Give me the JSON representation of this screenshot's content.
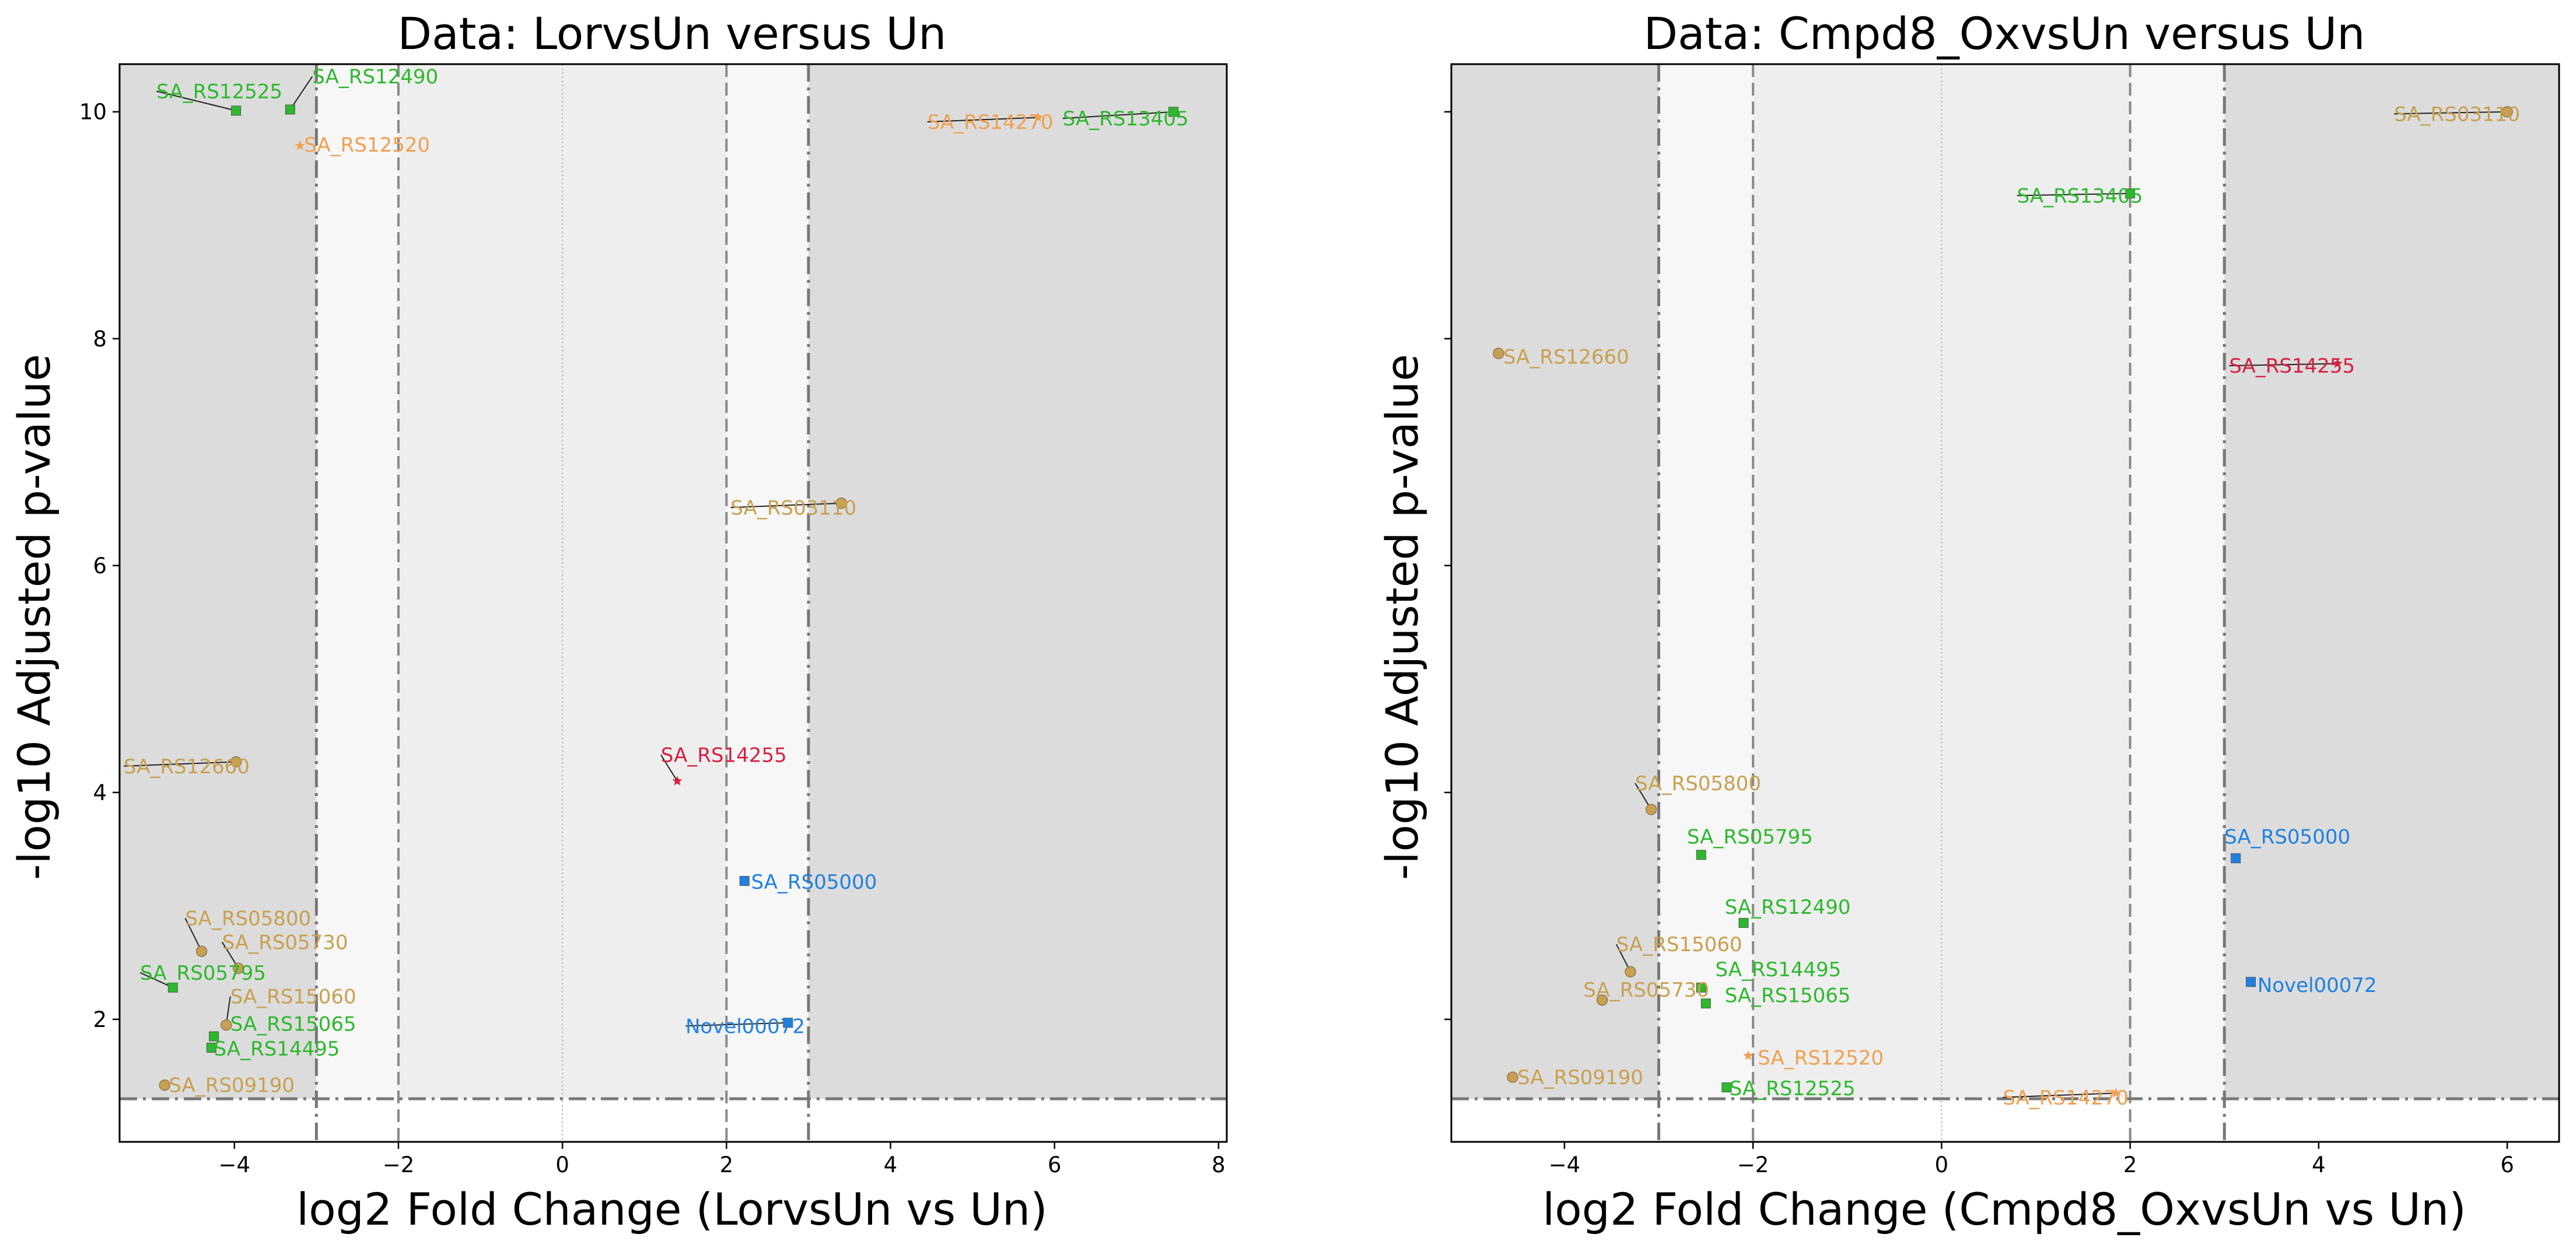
{
  "chart_data": [
    {
      "type": "scatter",
      "title": "Data: LorvsUn versus Un",
      "xlabel": "log2 Fold Change (LorvsUn vs Un)",
      "ylabel": "-log10 Adjusted p-value",
      "xlim": [
        -5.4,
        8.1
      ],
      "ylim": [
        0.92,
        10.42
      ],
      "xticks": [
        -4,
        -2,
        0,
        2,
        4,
        6,
        8
      ],
      "yticks": [
        2,
        4,
        6,
        8,
        10
      ],
      "xtick_labels": [
        "−4",
        "−2",
        "0",
        "2",
        "4",
        "6",
        "8"
      ],
      "ytick_labels": [
        "2",
        "4",
        "6",
        "8",
        "10"
      ],
      "thresholds": {
        "fc_inner": 2,
        "fc_outer": 3,
        "pvalue_line": 1.3
      },
      "points": [
        {
          "gene": "SA_RS12525",
          "x": -3.98,
          "y": 10.01,
          "color": "#2db82d",
          "marker": "square",
          "lx": -4.95,
          "ly": 10.12
        },
        {
          "gene": "SA_RS12490",
          "x": -3.32,
          "y": 10.02,
          "color": "#2db82d",
          "marker": "square",
          "lx": -3.05,
          "ly": 10.25
        },
        {
          "gene": "SA_RS12520",
          "x": -3.2,
          "y": 9.7,
          "color": "#f0a050",
          "marker": "star",
          "lx": -3.15,
          "ly": 9.65
        },
        {
          "gene": "SA_RS14270",
          "x": 5.8,
          "y": 9.95,
          "color": "#f0a050",
          "marker": "star",
          "lx": 4.45,
          "ly": 9.85
        },
        {
          "gene": "SA_RS13405",
          "x": 7.45,
          "y": 10.0,
          "color": "#2db82d",
          "marker": "square",
          "lx": 6.1,
          "ly": 9.88
        },
        {
          "gene": "SA_RS03110",
          "x": 3.4,
          "y": 6.55,
          "color": "#c8a050",
          "marker": "circle",
          "lx": 2.05,
          "ly": 6.45
        },
        {
          "gene": "SA_RS12660",
          "x": -3.98,
          "y": 4.27,
          "color": "#c8a050",
          "marker": "circle",
          "lx": -5.35,
          "ly": 4.17
        },
        {
          "gene": "SA_RS14255",
          "x": 1.4,
          "y": 4.1,
          "color": "#d62040",
          "marker": "star",
          "lx": 1.2,
          "ly": 4.27
        },
        {
          "gene": "SA_RS05000",
          "x": 2.22,
          "y": 3.22,
          "color": "#2080e0",
          "marker": "square",
          "lx": 2.3,
          "ly": 3.15
        },
        {
          "gene": "SA_RS05800",
          "x": -4.4,
          "y": 2.6,
          "color": "#c8a050",
          "marker": "circle",
          "lx": -4.6,
          "ly": 2.83
        },
        {
          "gene": "SA_RS05730",
          "x": -3.95,
          "y": 2.45,
          "color": "#c8a050",
          "marker": "circle",
          "lx": -4.15,
          "ly": 2.62
        },
        {
          "gene": "SA_RS05795",
          "x": -4.75,
          "y": 2.28,
          "color": "#2db82d",
          "marker": "square",
          "lx": -5.15,
          "ly": 2.35
        },
        {
          "gene": "SA_RS15060",
          "x": -4.1,
          "y": 1.95,
          "color": "#c8a050",
          "marker": "circle",
          "lx": -4.05,
          "ly": 2.14
        },
        {
          "gene": "SA_RS15065",
          "x": -4.25,
          "y": 1.85,
          "color": "#2db82d",
          "marker": "square",
          "lx": -4.05,
          "ly": 1.9
        },
        {
          "gene": "Novel00072",
          "x": 2.75,
          "y": 1.97,
          "color": "#2080e0",
          "marker": "square",
          "lx": 1.5,
          "ly": 1.88
        },
        {
          "gene": "SA_RS14495",
          "x": -4.28,
          "y": 1.75,
          "color": "#2db82d",
          "marker": "square",
          "lx": -4.25,
          "ly": 1.68
        },
        {
          "gene": "SA_RS09190",
          "x": -4.85,
          "y": 1.42,
          "color": "#c8a050",
          "marker": "circle",
          "lx": -4.8,
          "ly": 1.36
        }
      ]
    },
    {
      "type": "scatter",
      "title": "Data: Cmpd8_OxvsUn versus Un",
      "xlabel": "log2 Fold Change (Cmpd8_OxvsUn vs Un)",
      "ylabel": "-log10 Adjusted p-value",
      "xlim": [
        -5.2,
        6.55
      ],
      "ylim": [
        0.92,
        10.42
      ],
      "xticks": [
        -4,
        -2,
        0,
        2,
        4,
        6
      ],
      "yticks": [
        2,
        4,
        6,
        8,
        10
      ],
      "xtick_labels": [
        "−4",
        "−2",
        "0",
        "2",
        "4",
        "6"
      ],
      "ytick_labels": [
        "2",
        "4",
        "6",
        "8",
        "10"
      ],
      "thresholds": {
        "fc_inner": 2,
        "fc_outer": 3,
        "pvalue_line": 1.3
      },
      "points": [
        {
          "gene": "SA_RS03110",
          "x": 6.0,
          "y": 10.0,
          "color": "#c8a050",
          "marker": "circle",
          "lx": 4.8,
          "ly": 9.92
        },
        {
          "gene": "SA_RS13405",
          "x": 2.0,
          "y": 9.28,
          "color": "#2db82d",
          "marker": "square",
          "lx": 0.8,
          "ly": 9.2
        },
        {
          "gene": "SA_RS12660",
          "x": -4.7,
          "y": 7.87,
          "color": "#c8a050",
          "marker": "circle",
          "lx": -4.65,
          "ly": 7.78
        },
        {
          "gene": "SA_RS14255",
          "x": 4.2,
          "y": 7.78,
          "color": "#d62040",
          "marker": "star",
          "lx": 3.05,
          "ly": 7.7
        },
        {
          "gene": "SA_RS05800",
          "x": -3.08,
          "y": 3.85,
          "color": "#c8a050",
          "marker": "circle",
          "lx": -3.25,
          "ly": 4.02
        },
        {
          "gene": "SA_RS05795",
          "x": -2.55,
          "y": 3.45,
          "color": "#2db82d",
          "marker": "square",
          "lx": -2.7,
          "ly": 3.55
        },
        {
          "gene": "SA_RS05000",
          "x": 3.12,
          "y": 3.42,
          "color": "#2080e0",
          "marker": "square",
          "lx": 3.0,
          "ly": 3.55
        },
        {
          "gene": "SA_RS12490",
          "x": -2.1,
          "y": 2.85,
          "color": "#2db82d",
          "marker": "square",
          "lx": -2.3,
          "ly": 2.93
        },
        {
          "gene": "SA_RS15060",
          "x": -3.3,
          "y": 2.42,
          "color": "#c8a050",
          "marker": "circle",
          "lx": -3.45,
          "ly": 2.6
        },
        {
          "gene": "SA_RS14495",
          "x": -2.55,
          "y": 2.28,
          "color": "#2db82d",
          "marker": "square",
          "lx": -2.4,
          "ly": 2.38
        },
        {
          "gene": "Novel00072",
          "x": 3.28,
          "y": 2.33,
          "color": "#2080e0",
          "marker": "square",
          "lx": 3.35,
          "ly": 2.24
        },
        {
          "gene": "SA_RS05730",
          "x": -3.6,
          "y": 2.17,
          "color": "#c8a050",
          "marker": "circle",
          "lx": -3.8,
          "ly": 2.2
        },
        {
          "gene": "SA_RS15065",
          "x": -2.5,
          "y": 2.14,
          "color": "#2db82d",
          "marker": "square",
          "lx": -2.3,
          "ly": 2.15
        },
        {
          "gene": "SA_RS12520",
          "x": -2.05,
          "y": 1.68,
          "color": "#f0a050",
          "marker": "star",
          "lx": -1.95,
          "ly": 1.6
        },
        {
          "gene": "SA_RS09190",
          "x": -4.55,
          "y": 1.49,
          "color": "#c8a050",
          "marker": "circle",
          "lx": -4.5,
          "ly": 1.43
        },
        {
          "gene": "SA_RS12525",
          "x": -2.28,
          "y": 1.4,
          "color": "#2db82d",
          "marker": "square",
          "lx": -2.25,
          "ly": 1.33
        },
        {
          "gene": "SA_RS14270",
          "x": 1.85,
          "y": 1.35,
          "color": "#f0a050",
          "marker": "star",
          "lx": 0.65,
          "ly": 1.25
        }
      ]
    }
  ]
}
